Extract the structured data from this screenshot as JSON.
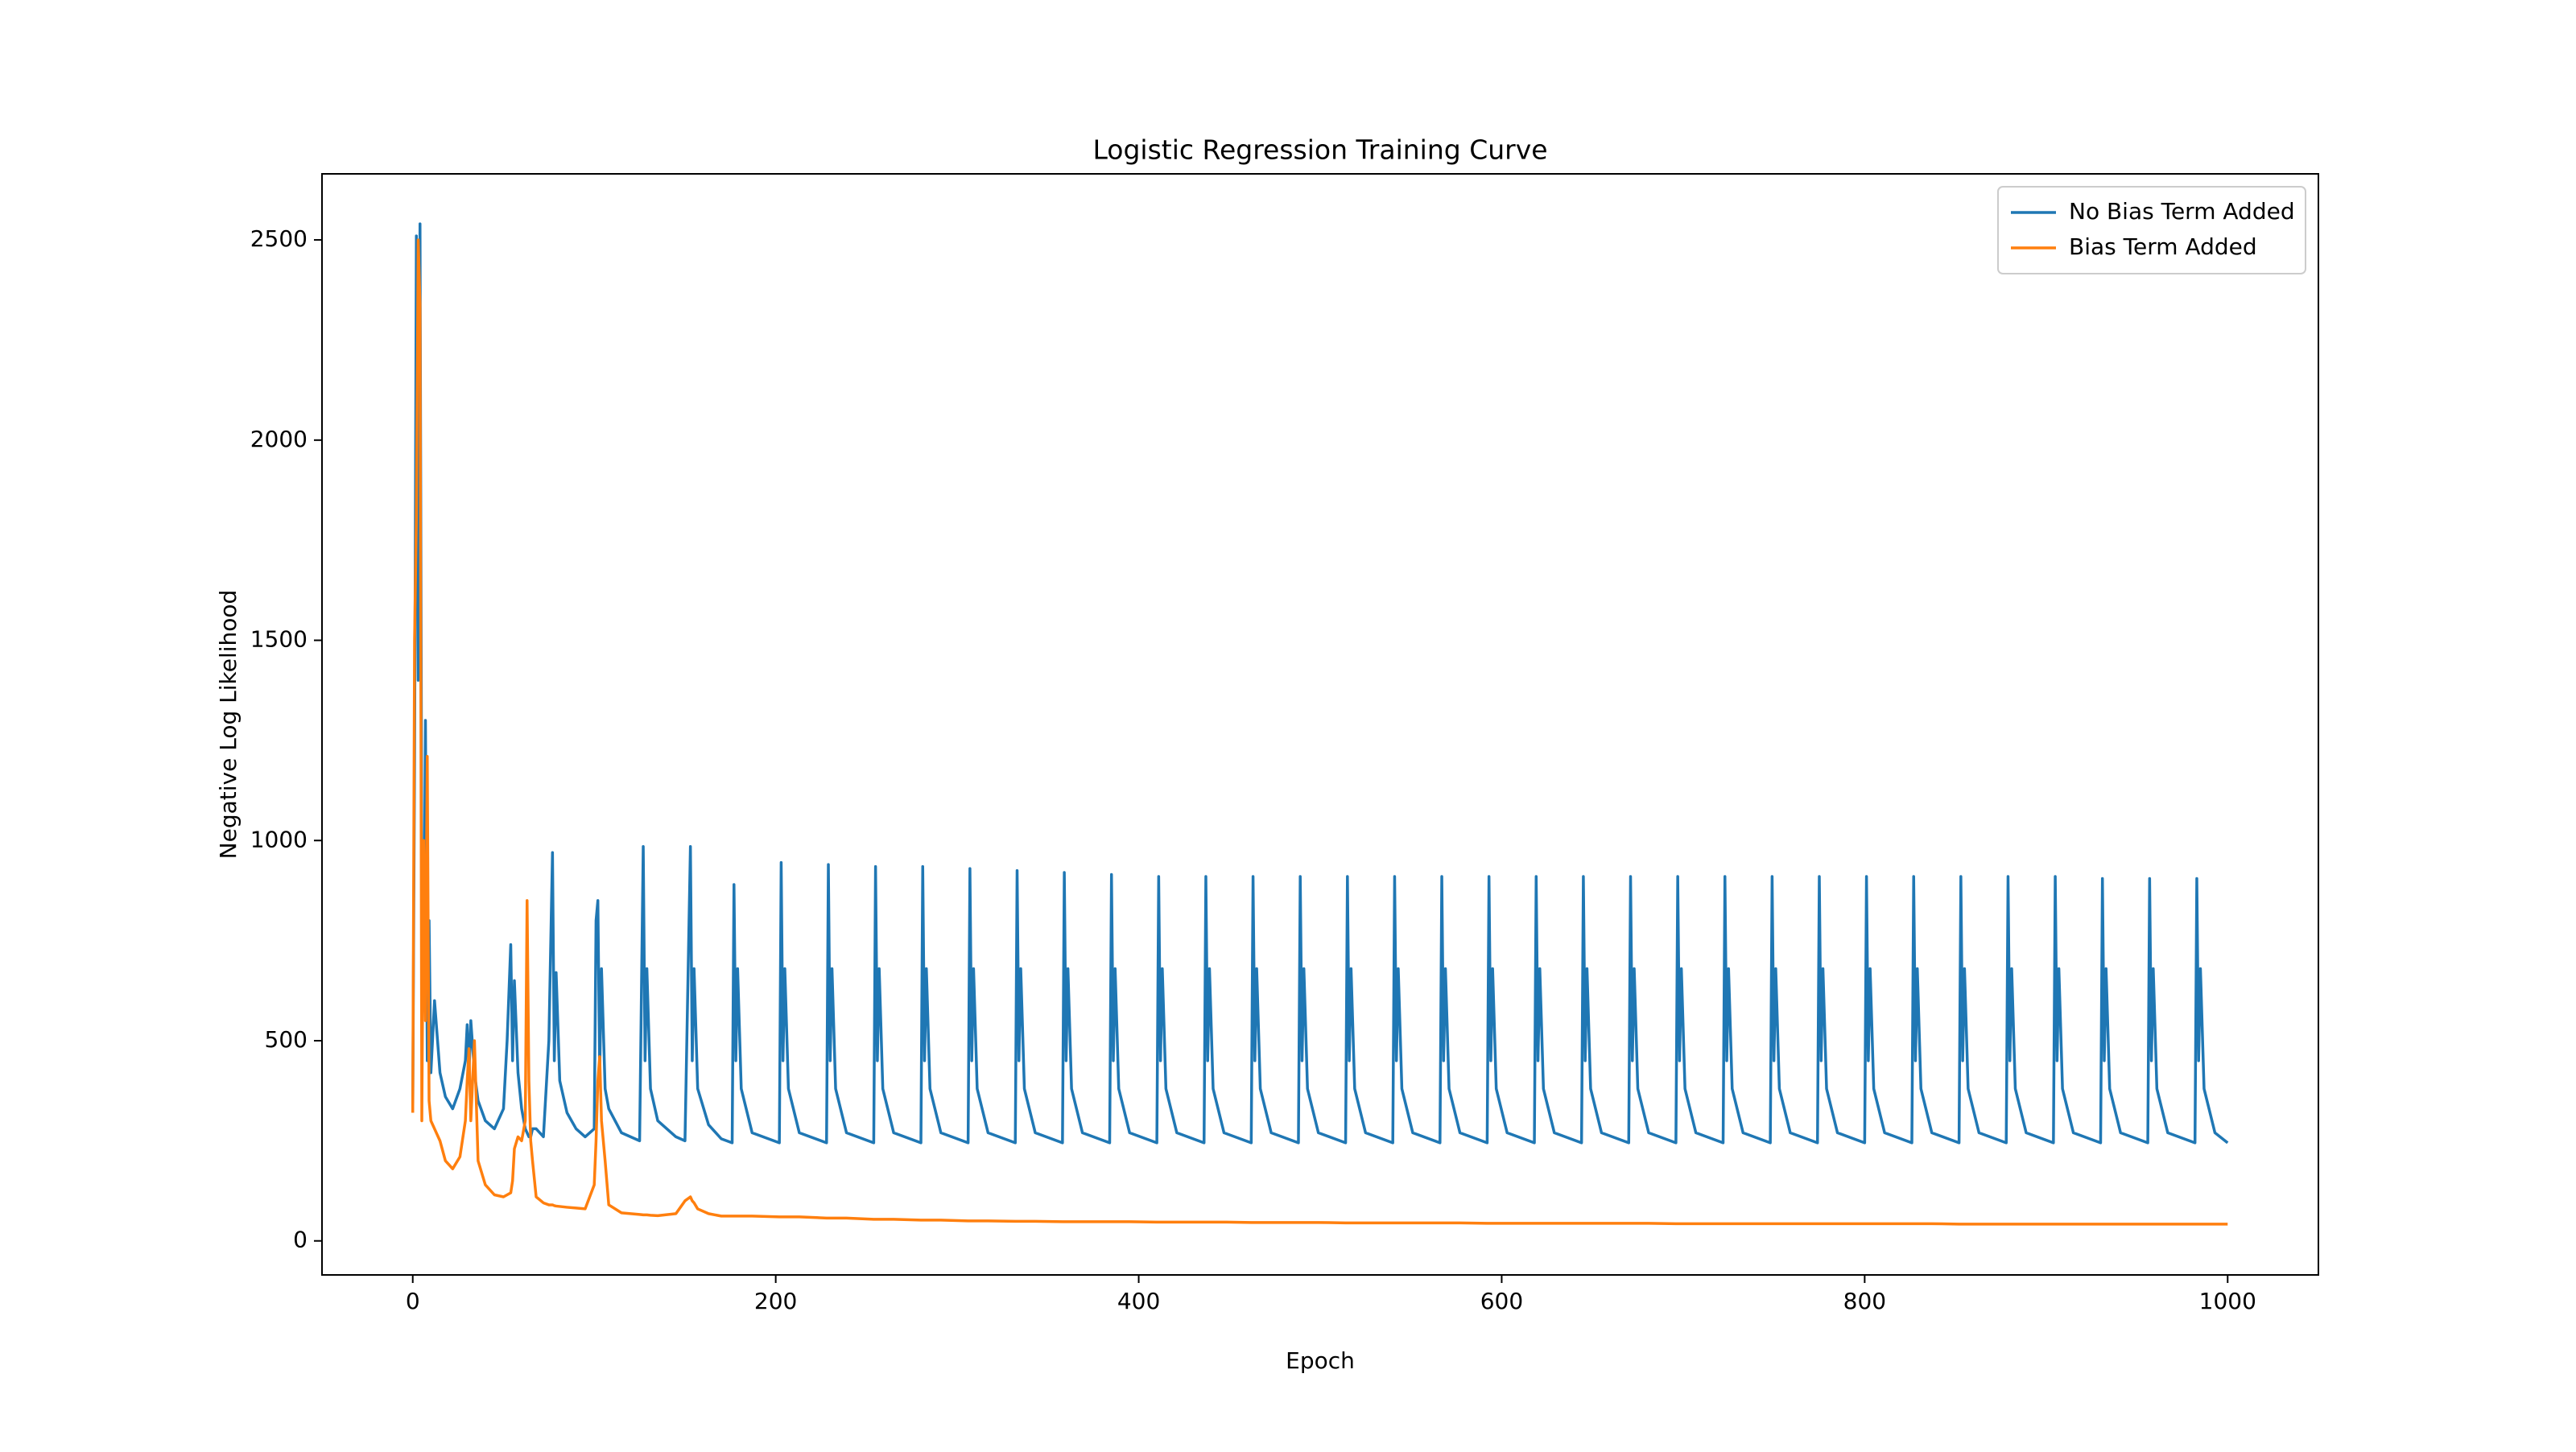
{
  "chart_data": {
    "type": "line",
    "title": "Logistic Regression Training Curve",
    "x_label": "Epoch",
    "y_label": "Negative Log Likelihood",
    "xlim": [
      -50,
      1050
    ],
    "ylim": [
      -85,
      2665
    ],
    "xticks": [
      0,
      200,
      400,
      600,
      800,
      1000
    ],
    "yticks": [
      0,
      500,
      1000,
      1500,
      2000,
      2500
    ],
    "legend": "upper right",
    "grid": false,
    "x": [
      0,
      1,
      2,
      3,
      4,
      5,
      6,
      7,
      8,
      9,
      10,
      12,
      15,
      18,
      22,
      26,
      29,
      30,
      31,
      32,
      34,
      36,
      40,
      45,
      50,
      52,
      54,
      55,
      56,
      58,
      60,
      62,
      63,
      64,
      65,
      66,
      68,
      72,
      75,
      77,
      78,
      79,
      81,
      85,
      90,
      95,
      100,
      101,
      102,
      103,
      104,
      106,
      108,
      115,
      125,
      127,
      128,
      129,
      131,
      135,
      145,
      150,
      153,
      154,
      155,
      157,
      163,
      170,
      176,
      177,
      178,
      179,
      181,
      187,
      202,
      203,
      204,
      205,
      207,
      213,
      228,
      229,
      230,
      231,
      233,
      239,
      254,
      255,
      256,
      257,
      259,
      265,
      280,
      281,
      282,
      283,
      285,
      291,
      306,
      307,
      308,
      309,
      311,
      317,
      332,
      333,
      334,
      335,
      337,
      343,
      358,
      359,
      360,
      361,
      363,
      369,
      384,
      385,
      386,
      387,
      389,
      395,
      410,
      411,
      412,
      413,
      415,
      421,
      436,
      437,
      438,
      439,
      441,
      447,
      462,
      463,
      464,
      465,
      467,
      473,
      488,
      489,
      490,
      491,
      493,
      499,
      514,
      515,
      516,
      517,
      519,
      525,
      540,
      541,
      542,
      543,
      545,
      551,
      566,
      567,
      568,
      569,
      571,
      577,
      592,
      593,
      594,
      595,
      597,
      603,
      618,
      619,
      620,
      621,
      623,
      629,
      644,
      645,
      646,
      647,
      649,
      655,
      670,
      671,
      672,
      673,
      675,
      681,
      696,
      697,
      698,
      699,
      701,
      707,
      722,
      723,
      724,
      725,
      727,
      733,
      748,
      749,
      750,
      751,
      753,
      759,
      774,
      775,
      776,
      777,
      779,
      785,
      800,
      801,
      802,
      803,
      805,
      811,
      826,
      827,
      828,
      829,
      831,
      837,
      852,
      853,
      854,
      855,
      857,
      863,
      878,
      879,
      880,
      881,
      883,
      889,
      904,
      905,
      906,
      907,
      909,
      915,
      930,
      931,
      932,
      933,
      935,
      941,
      956,
      957,
      958,
      959,
      961,
      967,
      982,
      983,
      984,
      985,
      987,
      993,
      1000
    ],
    "series": [
      {
        "name": "No Bias Term Added",
        "color": "#1f77b4",
        "values": [
          330,
          1200,
          2510,
          1400,
          2540,
          900,
          600,
          1300,
          450,
          800,
          420,
          600,
          420,
          360,
          330,
          380,
          450,
          540,
          420,
          550,
          420,
          350,
          300,
          280,
          330,
          500,
          740,
          450,
          650,
          420,
          330,
          280,
          270,
          260,
          260,
          280,
          280,
          260,
          500,
          970,
          450,
          670,
          400,
          320,
          280,
          260,
          280,
          800,
          850,
          420,
          680,
          380,
          330,
          270,
          250,
          985,
          450,
          680,
          380,
          300,
          260,
          250,
          985,
          450,
          680,
          380,
          290,
          255,
          245,
          890,
          450,
          680,
          380,
          270,
          245,
          945,
          450,
          680,
          380,
          270,
          245,
          940,
          450,
          680,
          380,
          270,
          245,
          935,
          450,
          680,
          380,
          270,
          245,
          935,
          450,
          680,
          380,
          270,
          245,
          930,
          450,
          680,
          380,
          270,
          245,
          925,
          450,
          680,
          380,
          270,
          245,
          920,
          450,
          680,
          380,
          270,
          245,
          915,
          450,
          680,
          380,
          270,
          245,
          910,
          450,
          680,
          380,
          270,
          245,
          910,
          450,
          680,
          380,
          270,
          245,
          910,
          450,
          680,
          380,
          270,
          245,
          910,
          450,
          680,
          380,
          270,
          245,
          910,
          450,
          680,
          380,
          270,
          245,
          910,
          450,
          680,
          380,
          270,
          245,
          910,
          450,
          680,
          380,
          270,
          245,
          910,
          450,
          680,
          380,
          270,
          245,
          910,
          450,
          680,
          380,
          270,
          245,
          910,
          450,
          680,
          380,
          270,
          245,
          910,
          450,
          680,
          380,
          270,
          245,
          910,
          450,
          680,
          380,
          270,
          245,
          910,
          450,
          680,
          380,
          270,
          245,
          910,
          450,
          680,
          380,
          270,
          245,
          910,
          450,
          680,
          380,
          270,
          245,
          910,
          450,
          680,
          380,
          270,
          245,
          910,
          450,
          680,
          380,
          270,
          245,
          910,
          450,
          680,
          380,
          270,
          245,
          910,
          450,
          680,
          380,
          270,
          245,
          910,
          450,
          680,
          380,
          270,
          245,
          905,
          450,
          680,
          380,
          270,
          245,
          905,
          450,
          680,
          380,
          270,
          245,
          905,
          450,
          680,
          380,
          270,
          245
        ]
      },
      {
        "name": "Bias Term Added",
        "color": "#ff7f0e",
        "values": [
          320,
          1500,
          1800,
          2500,
          2340,
          300,
          1000,
          550,
          1210,
          350,
          300,
          280,
          250,
          200,
          180,
          210,
          300,
          400,
          480,
          300,
          500,
          200,
          140,
          115,
          110,
          115,
          120,
          150,
          230,
          260,
          250,
          300,
          850,
          400,
          250,
          200,
          110,
          95,
          90,
          90,
          88,
          87,
          86,
          84,
          82,
          80,
          140,
          250,
          400,
          460,
          300,
          200,
          90,
          70,
          66,
          65,
          65,
          65,
          64,
          63,
          68,
          100,
          110,
          100,
          95,
          80,
          68,
          62,
          62,
          62,
          62,
          62,
          62,
          62,
          60,
          60,
          60,
          60,
          60,
          60,
          57,
          57,
          57,
          57,
          57,
          57,
          54,
          54,
          54,
          54,
          54,
          54,
          52,
          52,
          52,
          52,
          52,
          52,
          50,
          50,
          50,
          50,
          50,
          50,
          49,
          49,
          49,
          49,
          49,
          49,
          48,
          48,
          48,
          48,
          48,
          48,
          48,
          48,
          48,
          48,
          48,
          48,
          47,
          47,
          47,
          47,
          47,
          47,
          47,
          47,
          47,
          47,
          47,
          47,
          46,
          46,
          46,
          46,
          46,
          46,
          46,
          46,
          46,
          46,
          46,
          46,
          45,
          45,
          45,
          45,
          45,
          45,
          45,
          45,
          45,
          45,
          45,
          45,
          45,
          45,
          45,
          45,
          45,
          45,
          44,
          44,
          44,
          44,
          44,
          44,
          44,
          44,
          44,
          44,
          44,
          44,
          44,
          44,
          44,
          44,
          44,
          44,
          44,
          44,
          44,
          44,
          44,
          44,
          43,
          43,
          43,
          43,
          43,
          43,
          43,
          43,
          43,
          43,
          43,
          43,
          43,
          43,
          43,
          43,
          43,
          43,
          43,
          43,
          43,
          43,
          43,
          43,
          43,
          43,
          43,
          43,
          43,
          43,
          43,
          43,
          43,
          43,
          43,
          43,
          42,
          42,
          42,
          42,
          42,
          42,
          42,
          42,
          42,
          42,
          42,
          42,
          42,
          42,
          42,
          42,
          42,
          42,
          42,
          42,
          42,
          42,
          42,
          42,
          42,
          42,
          42,
          42,
          42,
          42,
          42,
          42,
          42,
          42,
          42,
          42,
          42
        ]
      }
    ]
  }
}
